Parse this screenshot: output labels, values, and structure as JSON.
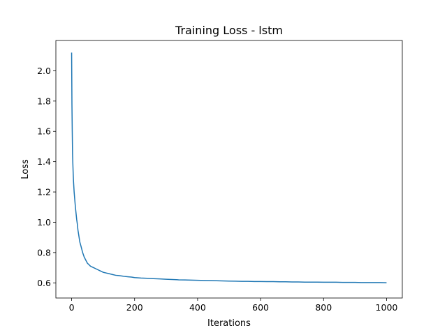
{
  "chart_data": {
    "type": "line",
    "title": "Training Loss - lstm",
    "xlabel": "Iterations",
    "ylabel": "Loss",
    "xlim": [
      -50,
      1050
    ],
    "ylim": [
      0.5,
      2.2
    ],
    "xticks": [
      0,
      200,
      400,
      600,
      800,
      1000
    ],
    "xtick_labels": [
      "0",
      "200",
      "400",
      "600",
      "800",
      "1000"
    ],
    "yticks": [
      0.6,
      0.8,
      1.0,
      1.2,
      1.4,
      1.6,
      1.8,
      2.0
    ],
    "ytick_labels": [
      "0.6",
      "0.8",
      "1.0",
      "1.2",
      "1.4",
      "1.6",
      "1.8",
      "2.0"
    ],
    "grid": false,
    "legend": "none",
    "series": [
      {
        "color": "#1f77b4",
        "x": [
          0,
          1,
          2,
          3,
          4,
          5,
          6,
          8,
          10,
          12,
          14,
          16,
          18,
          20,
          23,
          26,
          30,
          35,
          40,
          45,
          50,
          60,
          70,
          80,
          90,
          100,
          110,
          120,
          130,
          140,
          150,
          160,
          170,
          180,
          190,
          200,
          220,
          240,
          260,
          280,
          300,
          320,
          340,
          360,
          380,
          400,
          420,
          440,
          460,
          480,
          500,
          520,
          540,
          560,
          580,
          600,
          620,
          640,
          660,
          680,
          700,
          720,
          740,
          760,
          780,
          800,
          820,
          840,
          860,
          880,
          900,
          920,
          940,
          960,
          980,
          1000
        ],
        "y": [
          2.12,
          1.78,
          1.6,
          1.45,
          1.38,
          1.32,
          1.27,
          1.2,
          1.15,
          1.1,
          1.06,
          1.02,
          0.99,
          0.95,
          0.91,
          0.87,
          0.84,
          0.8,
          0.77,
          0.75,
          0.73,
          0.71,
          0.7,
          0.69,
          0.68,
          0.67,
          0.665,
          0.66,
          0.655,
          0.65,
          0.648,
          0.645,
          0.642,
          0.64,
          0.638,
          0.635,
          0.632,
          0.63,
          0.628,
          0.626,
          0.624,
          0.622,
          0.62,
          0.619,
          0.618,
          0.617,
          0.616,
          0.615,
          0.614,
          0.613,
          0.612,
          0.611,
          0.61,
          0.61,
          0.609,
          0.609,
          0.608,
          0.608,
          0.607,
          0.607,
          0.606,
          0.606,
          0.605,
          0.605,
          0.605,
          0.604,
          0.604,
          0.604,
          0.603,
          0.603,
          0.603,
          0.602,
          0.602,
          0.602,
          0.602,
          0.601
        ]
      }
    ]
  }
}
